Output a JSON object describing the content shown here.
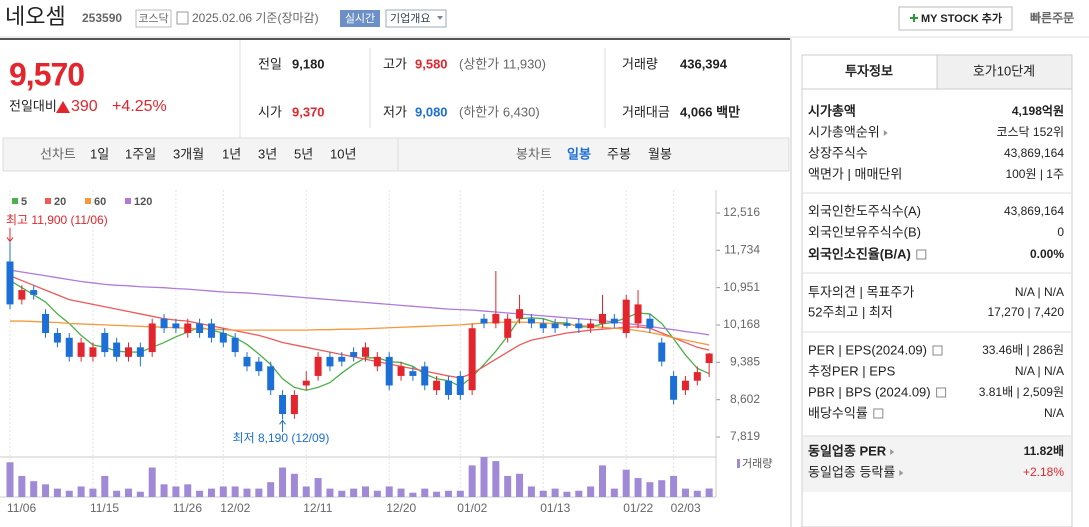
{
  "header": {
    "name": "네오셈",
    "code": "253590",
    "market": "코스닥",
    "date": "2025.02.06 기준(장마감)",
    "realtime": "실시간",
    "company": "기업개요",
    "my_stock": "MY STOCK 추가",
    "quick_order": "빠른주문"
  },
  "price": {
    "current": "9,570",
    "change_label": "전일대비",
    "change": "390",
    "change_pct": "+4.25%"
  },
  "quote": [
    {
      "label": "전일",
      "value": "9,180"
    },
    {
      "label": "시가",
      "value": "9,370"
    },
    {
      "label": "고가",
      "value": "9,580",
      "extra": "(상한가 11,930)"
    },
    {
      "label": "저가",
      "value": "9,080",
      "extra": "(하한가 6,430)"
    },
    {
      "label": "거래량",
      "value": "436,394"
    },
    {
      "label": "거래대금",
      "value": "4,066 백만"
    }
  ],
  "tabs": {
    "line_label": "선차트",
    "periods": [
      "1일",
      "1주일",
      "3개월",
      "1년",
      "3년",
      "5년",
      "10년"
    ],
    "candle_label": "봉차트",
    "candle_periods": [
      "일봉",
      "주봉",
      "월봉"
    ]
  },
  "chart": {
    "type": "candlestick",
    "up_color": "#e3262d",
    "down_color": "#1c6fd6",
    "volume_color": "#a089d6",
    "volume_label": "거래량",
    "categories": [
      "11/06",
      null,
      null,
      null,
      null,
      null,
      null,
      "11/15",
      null,
      null,
      null,
      null,
      null,
      null,
      "11/26",
      null,
      null,
      null,
      "12/02",
      null,
      null,
      null,
      null,
      null,
      null,
      "12/11",
      null,
      null,
      null,
      null,
      null,
      null,
      "12/20",
      null,
      null,
      null,
      null,
      null,
      "01/02",
      null,
      null,
      null,
      null,
      null,
      null,
      "01/13",
      null,
      null,
      null,
      null,
      null,
      null,
      "01/22",
      null,
      null,
      null,
      "02/03",
      null,
      null,
      null
    ],
    "open": [
      11500,
      10700,
      10900,
      10400,
      10000,
      9900,
      9500,
      9500,
      10000,
      9800,
      9500,
      9700,
      9600,
      10300,
      10200,
      10000,
      10200,
      10200,
      10000,
      9900,
      9500,
      9400,
      9300,
      8700,
      8300,
      8900,
      9100,
      9500,
      9500,
      9600,
      9500,
      9300,
      9500,
      9100,
      9200,
      9300,
      8800,
      9000,
      9100,
      8800,
      10300,
      10200,
      9900,
      10300,
      10300,
      10200,
      10200,
      10200,
      10200,
      10100,
      10200,
      10300,
      10000,
      10200,
      10300,
      9800,
      9100,
      8800,
      9000,
      9370
    ],
    "high": [
      11900,
      11000,
      11000,
      10500,
      10100,
      10000,
      9900,
      9800,
      10100,
      9900,
      9800,
      9800,
      10300,
      10400,
      10300,
      10300,
      10300,
      10300,
      10100,
      10000,
      9600,
      9500,
      9400,
      8800,
      8800,
      9200,
      9600,
      9600,
      9600,
      9700,
      9800,
      9600,
      9600,
      9400,
      9300,
      9400,
      9100,
      9100,
      9200,
      10200,
      10400,
      11300,
      10400,
      10800,
      10400,
      10300,
      10300,
      10300,
      10300,
      10300,
      10800,
      10400,
      10800,
      10900,
      10400,
      9900,
      9200,
      9100,
      9300,
      9580
    ],
    "low": [
      10500,
      10600,
      10700,
      9900,
      9700,
      9400,
      9400,
      9400,
      9500,
      9400,
      9400,
      9300,
      9500,
      10000,
      10000,
      9900,
      9900,
      9800,
      9700,
      9500,
      9200,
      9100,
      8700,
      8190,
      8200,
      8800,
      9000,
      9200,
      9300,
      9400,
      9400,
      9200,
      8800,
      9000,
      9000,
      8800,
      8700,
      8600,
      8600,
      8700,
      10100,
      10100,
      9800,
      10200,
      10100,
      10000,
      10000,
      10100,
      10000,
      10000,
      10100,
      10100,
      9900,
      10100,
      10000,
      9300,
      8500,
      8700,
      8900,
      9080
    ],
    "close": [
      10600,
      10900,
      10800,
      10000,
      9800,
      9500,
      9800,
      9700,
      9600,
      9500,
      9700,
      9500,
      10200,
      10100,
      10100,
      10200,
      10000,
      9900,
      9800,
      9600,
      9300,
      9200,
      8800,
      8300,
      8700,
      9000,
      9500,
      9300,
      9400,
      9500,
      9700,
      9500,
      8900,
      9300,
      9100,
      8900,
      9000,
      8700,
      8700,
      10100,
      10200,
      10400,
      10300,
      10500,
      10200,
      10100,
      10100,
      10150,
      10100,
      10200,
      10400,
      10200,
      10700,
      10600,
      10100,
      9400,
      8600,
      9000,
      9180,
      9570
    ],
    "volume": [
      1780000,
      1080000,
      810000,
      650000,
      430000,
      320000,
      540000,
      430000,
      1080000,
      320000,
      430000,
      270000,
      1510000,
      650000,
      540000,
      650000,
      320000,
      430000,
      540000,
      540000,
      430000,
      430000,
      760000,
      1510000,
      1190000,
      540000,
      970000,
      430000,
      320000,
      430000,
      540000,
      320000,
      540000,
      430000,
      220000,
      430000,
      270000,
      320000,
      320000,
      1620000,
      2050000,
      1840000,
      1080000,
      1190000,
      540000,
      320000,
      430000,
      270000,
      320000,
      540000,
      1620000,
      430000,
      1400000,
      970000,
      760000,
      860000,
      1080000,
      430000,
      320000,
      436394
    ],
    "series": [
      {
        "name": "5",
        "color": "#4db04a",
        "values": [
          11100,
          10950,
          10800,
          10650,
          10400,
          10200,
          9950,
          9750,
          9700,
          9620,
          9600,
          9600,
          9700,
          9800,
          9920,
          10020,
          10120,
          10060,
          10000,
          9900,
          9760,
          9560,
          9340,
          9040,
          8860,
          8800,
          8860,
          8960,
          9160,
          9340,
          9480,
          9480,
          9400,
          9380,
          9300,
          9140,
          9040,
          9000,
          8880,
          9080,
          9340,
          9620,
          9940,
          10300,
          10320,
          10300,
          10220,
          10210,
          10130,
          10130,
          10190,
          10230,
          10320,
          10420,
          10400,
          10200,
          9880,
          9540,
          9260,
          9150
        ]
      },
      {
        "name": "20",
        "color": "#ee5a5a",
        "values": [
          11200,
          11100,
          11000,
          10900,
          10800,
          10700,
          10650,
          10600,
          10550,
          10500,
          10450,
          10400,
          10350,
          10300,
          10270,
          10250,
          10200,
          10150,
          10100,
          10050,
          10000,
          9950,
          9880,
          9800,
          9750,
          9700,
          9650,
          9600,
          9550,
          9500,
          9450,
          9400,
          9350,
          9300,
          9250,
          9200,
          9150,
          9100,
          9060,
          9150,
          9300,
          9450,
          9600,
          9750,
          9850,
          9900,
          9950,
          10000,
          10030,
          10060,
          10080,
          10100,
          10120,
          10130,
          10100,
          10000,
          9900,
          9800,
          9700,
          9640
        ]
      },
      {
        "name": "60",
        "color": "#f59a3a",
        "values": [
          10250,
          10250,
          10240,
          10230,
          10220,
          10200,
          10190,
          10180,
          10170,
          10160,
          10150,
          10140,
          10130,
          10120,
          10110,
          10100,
          10090,
          10080,
          10070,
          10060,
          10060,
          10060,
          10060,
          10060,
          10060,
          10060,
          10070,
          10070,
          10080,
          10080,
          10090,
          10100,
          10110,
          10120,
          10130,
          10140,
          10150,
          10160,
          10170,
          10190,
          10210,
          10220,
          10230,
          10230,
          10220,
          10210,
          10200,
          10180,
          10160,
          10140,
          10120,
          10100,
          10080,
          10050,
          10010,
          9960,
          9900,
          9850,
          9800,
          9750
        ]
      },
      {
        "name": "120",
        "color": "#b07ad8",
        "values": [
          11320,
          11280,
          11240,
          11200,
          11160,
          11120,
          11080,
          11050,
          11020,
          11000,
          10990,
          10970,
          10960,
          10950,
          10930,
          10920,
          10900,
          10880,
          10860,
          10850,
          10840,
          10820,
          10800,
          10780,
          10760,
          10740,
          10720,
          10700,
          10680,
          10660,
          10640,
          10620,
          10600,
          10580,
          10560,
          10540,
          10520,
          10500,
          10490,
          10480,
          10460,
          10440,
          10420,
          10400,
          10380,
          10360,
          10340,
          10320,
          10300,
          10280,
          10260,
          10230,
          10200,
          10170,
          10140,
          10100,
          10070,
          10030,
          10000,
          9960
        ]
      }
    ],
    "ylim": [
      7442,
      12789
    ],
    "yticks": [
      {
        "value": 12516,
        "label": "12,516"
      },
      {
        "value": 11734,
        "label": "11,734"
      },
      {
        "value": 10951,
        "label": "10,951"
      },
      {
        "value": 10168,
        "label": "10,168"
      },
      {
        "value": 9385,
        "label": "9,385"
      },
      {
        "value": 8602,
        "label": "8,602"
      },
      {
        "value": 7819,
        "label": "7,819"
      }
    ],
    "annotations": {
      "high": "최고 11,900 (11/06)",
      "low": "최저 8,190 (12/09)"
    }
  },
  "info": {
    "tabs": [
      "투자정보",
      "호가10단계"
    ],
    "groups": [
      [
        {
          "label": "시가총액",
          "value": "4,198억원"
        },
        {
          "label": "시가총액순위",
          "value": "코스닥 152위"
        },
        {
          "label": "상장주식수",
          "value": "43,869,164"
        },
        {
          "label": "액면가 | 매매단위",
          "value": "100원 | 1주"
        }
      ],
      [
        {
          "label": "외국인한도주식수(A)",
          "value": "43,869,164"
        },
        {
          "label": "외국인보유주식수(B)",
          "value": "0"
        },
        {
          "label": "외국인소진율(B/A)",
          "value": "0.00%"
        }
      ],
      [
        {
          "label": "투자의견 | 목표주가",
          "value": "N/A | N/A"
        },
        {
          "label": "52주최고 | 최저",
          "value": "17,270 | 7,420"
        }
      ],
      [
        {
          "label": "PER | EPS(2024.09)",
          "value": "33.46배 | 286원"
        },
        {
          "label": "추정PER | EPS",
          "value": "N/A | N/A"
        },
        {
          "label": "PBR | BPS (2024.09)",
          "value": "3.81배 | 2,509원"
        },
        {
          "label": "배당수익률",
          "value": "N/A"
        }
      ],
      [
        {
          "label": "동일업종 PER",
          "value": "11.82배"
        },
        {
          "label": "동일업종 등락률",
          "value": "+2.18%"
        }
      ]
    ]
  }
}
